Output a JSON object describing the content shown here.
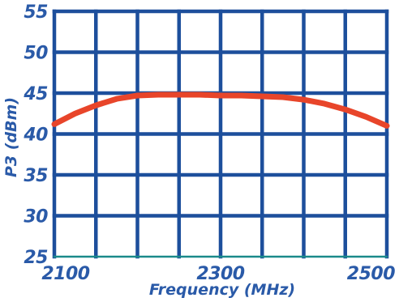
{
  "chart_data": {
    "type": "line",
    "xlabel": "Frequency (MHz)",
    "ylabel": "P3 (dBm)",
    "xlim": [
      2100,
      2500
    ],
    "ylim": [
      25,
      55
    ],
    "x_ticks": [
      2100,
      2300,
      2500
    ],
    "y_ticks": [
      25,
      30,
      35,
      40,
      45,
      50,
      55
    ],
    "x_grid": [
      2100,
      2150,
      2200,
      2250,
      2300,
      2350,
      2400,
      2450,
      2500
    ],
    "y_grid": [
      25,
      30,
      35,
      40,
      45,
      50,
      55
    ],
    "grid": true,
    "series": [
      {
        "x": [
          2100,
          2125,
          2150,
          2175,
          2200,
          2225,
          2250,
          2275,
          2300,
          2325,
          2350,
          2375,
          2400,
          2425,
          2450,
          2475,
          2500
        ],
        "y": [
          41.2,
          42.5,
          43.5,
          44.3,
          44.7,
          44.8,
          44.8,
          44.8,
          44.7,
          44.7,
          44.6,
          44.5,
          44.2,
          43.7,
          43.0,
          42.1,
          41.0
        ]
      }
    ]
  },
  "colors": {
    "grid": "#1d4f9c",
    "text": "#2a5aa8",
    "line": "#e8452a",
    "baseline": "#1a8a8a",
    "background": "#ffffff"
  }
}
